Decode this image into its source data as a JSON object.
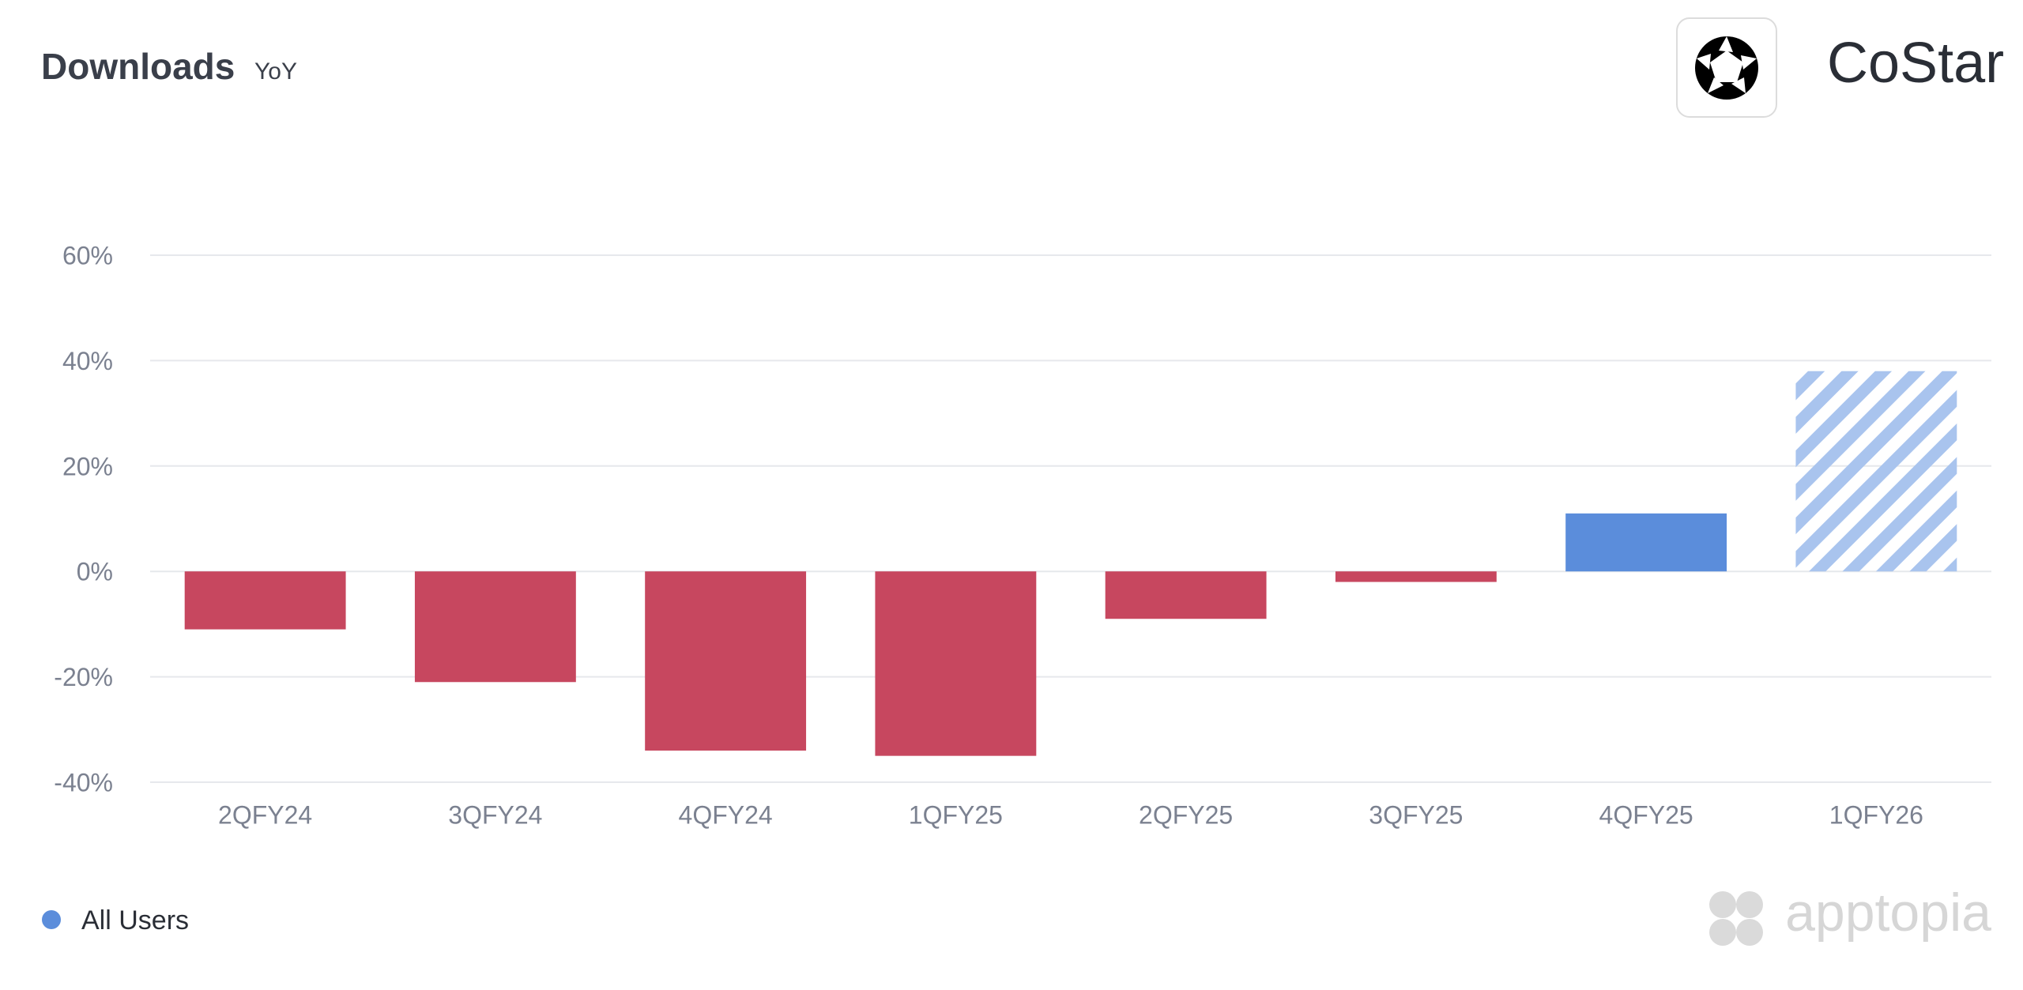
{
  "chart_data": {
    "type": "bar",
    "title": "Downloads",
    "subtitle": "YoY",
    "brand": "CoStar",
    "watermark": "apptopia",
    "categories": [
      "2QFY24",
      "3QFY24",
      "4QFY24",
      "1QFY25",
      "2QFY25",
      "3QFY25",
      "4QFY25",
      "1QFY26"
    ],
    "series": [
      {
        "name": "All Users",
        "color": "#5b8ddb",
        "values": [
          -11,
          -21,
          -34,
          -35,
          -9,
          -2,
          11,
          38
        ]
      }
    ],
    "colors": [
      "#c7475f",
      "#c7475f",
      "#c7475f",
      "#c7475f",
      "#c7475f",
      "#c7475f",
      "#5b8ddb",
      "#a9c4ee"
    ],
    "patterns": [
      "solid",
      "solid",
      "solid",
      "solid",
      "solid",
      "solid",
      "solid",
      "hatched"
    ],
    "ylim": [
      -40,
      60
    ],
    "yticks": [
      {
        "value": -40,
        "label": "-40%"
      },
      {
        "value": -20,
        "label": "-20%"
      },
      {
        "value": 0,
        "label": "0%"
      },
      {
        "value": 20,
        "label": "20%"
      },
      {
        "value": 40,
        "label": "40%"
      },
      {
        "value": 60,
        "label": "60%"
      }
    ],
    "grid": true
  }
}
